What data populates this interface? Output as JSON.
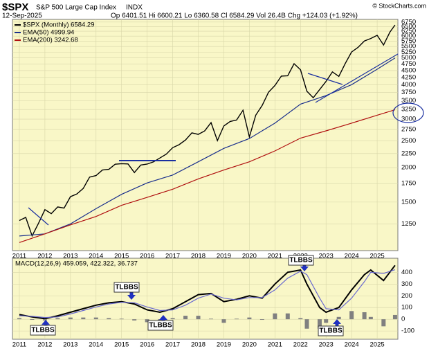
{
  "chart_data": [
    {
      "type": "line",
      "symbol": "$SPX",
      "name": "S&P 500 Large Cap Index",
      "exchange": "INDX",
      "date": "12-Sep-2025",
      "quote": "Op 6401.51 Hi 6600.21 Lo 6360.58 Cl 6584.29 Vol 26.4B Chg +124.03 (+1.92%)",
      "source": "© StockCharts.com",
      "log_scale": true,
      "xlim": [
        2010.73,
        2025.81
      ],
      "xticks": [
        2011,
        2012,
        2013,
        2014,
        2015,
        2016,
        2017,
        2018,
        2019,
        2020,
        2021,
        2022,
        2023,
        2024,
        2025
      ],
      "ylim": [
        1000,
        6900
      ],
      "yticks": [
        1250,
        1500,
        1750,
        2000,
        2250,
        2500,
        2750,
        3000,
        3250,
        3500,
        3750,
        4000,
        4250,
        4500,
        4750,
        5000,
        5250,
        5500,
        5750,
        6000,
        6250,
        6500,
        6750
      ],
      "series": [
        {
          "name": "$SPX (Monthly) 6584.29",
          "color": "#000000",
          "x": [
            2011,
            2011.25,
            2011.5,
            2011.75,
            2012,
            2012.25,
            2012.5,
            2012.75,
            2013,
            2013.25,
            2013.5,
            2013.75,
            2014,
            2014.25,
            2014.5,
            2014.75,
            2015,
            2015.25,
            2015.5,
            2015.75,
            2016,
            2016.25,
            2016.5,
            2016.75,
            2017,
            2017.25,
            2017.5,
            2017.75,
            2018,
            2018.25,
            2018.5,
            2018.75,
            2019,
            2019.25,
            2019.5,
            2019.75,
            2020,
            2020.25,
            2020.5,
            2020.75,
            2021,
            2021.25,
            2021.5,
            2021.75,
            2022,
            2022.25,
            2022.5,
            2022.75,
            2023,
            2023.25,
            2023.5,
            2023.75,
            2024,
            2024.25,
            2024.5,
            2024.75,
            2025,
            2025.25,
            2025.5,
            2025.7
          ],
          "values": [
            1286,
            1320,
            1131,
            1257,
            1408,
            1362,
            1440,
            1426,
            1569,
            1606,
            1681,
            1848,
            1872,
            1960,
            1972,
            2058,
            2067,
            2063,
            1920,
            2044,
            2060,
            2099,
            2168,
            2239,
            2363,
            2423,
            2519,
            2674,
            2640,
            2718,
            2914,
            2507,
            2834,
            2942,
            2977,
            3231,
            2585,
            3100,
            3363,
            3756,
            3973,
            4298,
            4308,
            4766,
            4530,
            3785,
            3586,
            3840,
            4109,
            4450,
            4288,
            4770,
            5254,
            5460,
            5762,
            5882,
            6040,
            5570,
            6205,
            6584
          ]
        },
        {
          "name": "EMA(50) 4999.94",
          "color": "#1a2f8c",
          "x": [
            2011,
            2012,
            2013,
            2014,
            2015,
            2016,
            2017,
            2018,
            2019,
            2020,
            2021,
            2022,
            2023,
            2024,
            2025,
            2025.7
          ],
          "values": [
            1130,
            1150,
            1250,
            1420,
            1600,
            1760,
            1880,
            2100,
            2350,
            2550,
            2900,
            3400,
            3650,
            4000,
            4550,
            4999.94
          ]
        },
        {
          "name": "EMA(200) 3242.68",
          "color": "#b01010",
          "x": [
            2011,
            2012,
            2013,
            2014,
            2015,
            2016,
            2017,
            2018,
            2019,
            2020,
            2021,
            2022,
            2023,
            2024,
            2025,
            2025.7
          ],
          "values": [
            1070,
            1150,
            1240,
            1330,
            1460,
            1560,
            1670,
            1820,
            1960,
            2100,
            2300,
            2560,
            2720,
            2900,
            3100,
            3242.68
          ]
        }
      ]
    },
    {
      "type": "macd",
      "title": "MACD(12,26,9) 459.059, 422.322, 36.737",
      "xlim": [
        2010.73,
        2025.81
      ],
      "xticks": [
        2011,
        2012,
        2013,
        2014,
        2015,
        2016,
        2017,
        2018,
        2019,
        2020,
        2021,
        2022,
        2023,
        2024,
        2025
      ],
      "ylim": [
        -170,
        520
      ],
      "yticks": [
        -100,
        0,
        100,
        200,
        300,
        400
      ],
      "x": [
        2011,
        2011.5,
        2012,
        2012.5,
        2013,
        2013.5,
        2014,
        2014.5,
        2015,
        2015.5,
        2016,
        2016.5,
        2017,
        2017.5,
        2018,
        2018.5,
        2019,
        2019.5,
        2020,
        2020.5,
        2021,
        2021.5,
        2022,
        2022.25,
        2022.75,
        2023,
        2023.5,
        2024,
        2024.5,
        2024.75,
        2025.25,
        2025.7
      ],
      "series": [
        {
          "color": "#000000",
          "values": [
            40,
            20,
            5,
            30,
            60,
            90,
            120,
            140,
            150,
            130,
            80,
            60,
            90,
            150,
            210,
            220,
            150,
            170,
            200,
            180,
            300,
            400,
            420,
            300,
            100,
            60,
            100,
            250,
            380,
            420,
            330,
            459.059
          ]
        },
        {
          "color": "#6a6ad0",
          "values": [
            30,
            25,
            15,
            20,
            45,
            75,
            105,
            130,
            145,
            140,
            105,
            75,
            80,
            120,
            180,
            215,
            180,
            165,
            185,
            185,
            250,
            350,
            410,
            380,
            180,
            90,
            80,
            180,
            320,
            400,
            390,
            422.322
          ]
        },
        {
          "color": "#808080",
          "values": [
            10,
            -5,
            -10,
            10,
            15,
            15,
            15,
            10,
            5,
            -10,
            -25,
            -15,
            10,
            30,
            30,
            5,
            -30,
            5,
            15,
            -5,
            50,
            50,
            10,
            -80,
            -80,
            -30,
            20,
            70,
            60,
            20,
            -60,
            36.737
          ]
        }
      ],
      "annotations": [
        "TLBBS",
        "TLBBS",
        "TLBBS",
        "TLBBS",
        "TLBBS"
      ]
    }
  ]
}
